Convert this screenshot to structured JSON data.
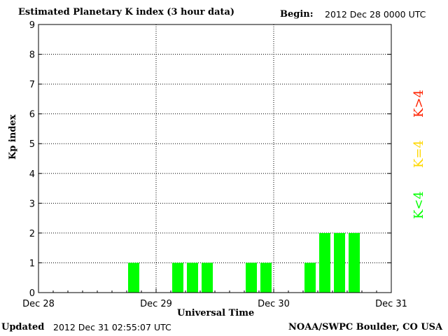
{
  "header": {
    "title": "Estimated Planetary K index (3 hour data)",
    "begin_label": "Begin:",
    "begin_value": "2012 Dec 28 0000 UTC"
  },
  "footer": {
    "updated_label": "Updated",
    "updated_value": "2012 Dec 31 02:55:07 UTC",
    "credit": "NOAA/SWPC Boulder, CO USA"
  },
  "legend": {
    "k_greater": "K>4",
    "k_equal": "K=4",
    "k_less": "K<4"
  },
  "colors": {
    "low": "#00ff00",
    "equal": "#ffd700",
    "high": "#ff2200",
    "grid": "#000000"
  },
  "chart_data": {
    "type": "bar",
    "title": "Estimated Planetary K index (3 hour data)",
    "xlabel": "Universal Time",
    "ylabel": "Kp index",
    "ylim": [
      0,
      9
    ],
    "yticks": [
      "0",
      "1",
      "2",
      "3",
      "4",
      "5",
      "6",
      "7",
      "8",
      "9"
    ],
    "xticks": [
      "Dec 28",
      "Dec 29",
      "Dec 30",
      "Dec 31"
    ],
    "bin_hours": 3,
    "grid": true,
    "series": [
      {
        "x": [
          "2012-12-28 00:00",
          "2012-12-28 03:00",
          "2012-12-28 06:00",
          "2012-12-28 09:00",
          "2012-12-28 12:00",
          "2012-12-28 15:00",
          "2012-12-28 18:00",
          "2012-12-28 21:00",
          "2012-12-29 00:00",
          "2012-12-29 03:00",
          "2012-12-29 06:00",
          "2012-12-29 09:00",
          "2012-12-29 12:00",
          "2012-12-29 15:00",
          "2012-12-29 18:00",
          "2012-12-29 21:00",
          "2012-12-30 00:00",
          "2012-12-30 03:00",
          "2012-12-30 06:00",
          "2012-12-30 09:00",
          "2012-12-30 12:00",
          "2012-12-30 15:00",
          "2012-12-30 18:00",
          "2012-12-30 21:00"
        ],
        "values": [
          0,
          0,
          0,
          0,
          0,
          0,
          1,
          0,
          0,
          1,
          1,
          1,
          0,
          0,
          1,
          1,
          0,
          0,
          1,
          2,
          2,
          2,
          0,
          0
        ]
      }
    ]
  }
}
